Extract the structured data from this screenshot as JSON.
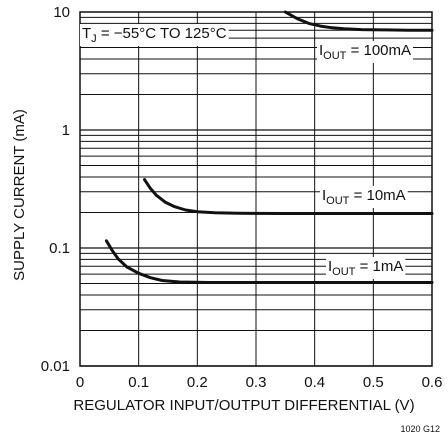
{
  "chart_data": {
    "type": "line",
    "xlabel": "REGULATOR INPUT/OUTPUT DIFFERENTIAL (V)",
    "ylabel": "SUPPLY CURRENT (mA)",
    "xlim": [
      0,
      0.6
    ],
    "ylim": [
      0.01,
      10
    ],
    "yscale": "log",
    "grid": true,
    "x_ticks": [
      {
        "value": 0,
        "label": "0"
      },
      {
        "value": 0.1,
        "label": "0.1"
      },
      {
        "value": 0.2,
        "label": "0.2"
      },
      {
        "value": 0.3,
        "label": "0.3"
      },
      {
        "value": 0.4,
        "label": "0.4"
      },
      {
        "value": 0.5,
        "label": "0.5"
      },
      {
        "value": 0.6,
        "label": "0.6"
      }
    ],
    "y_ticks": [
      {
        "value": 0.01,
        "label": "0.01"
      },
      {
        "value": 0.1,
        "label": "0.1"
      },
      {
        "value": 1,
        "label": "1"
      },
      {
        "value": 10,
        "label": "10"
      }
    ],
    "annotations": {
      "condition": {
        "main": "T",
        "sub": "J",
        "rest": " = −55°C TO 125°C"
      },
      "figure_id": "1020 G12"
    },
    "series": [
      {
        "label_main": "I",
        "label_sub": "OUT",
        "label_rest": " = 100mA",
        "x": [
          0.35,
          0.37,
          0.39,
          0.41,
          0.43,
          0.45,
          0.48,
          0.52,
          0.56,
          0.6
        ],
        "y": [
          10.0,
          8.8,
          8.0,
          7.6,
          7.35,
          7.2,
          7.1,
          7.05,
          7.0,
          7.0
        ]
      },
      {
        "label_main": "I",
        "label_sub": "OUT",
        "label_rest": " = 10mA",
        "x": [
          0.11,
          0.12,
          0.13,
          0.145,
          0.16,
          0.18,
          0.2,
          0.23,
          0.27,
          0.35,
          0.45,
          0.6
        ],
        "y": [
          0.38,
          0.32,
          0.28,
          0.245,
          0.225,
          0.21,
          0.203,
          0.199,
          0.197,
          0.196,
          0.196,
          0.196
        ]
      },
      {
        "label_main": "I",
        "label_sub": "OUT",
        "label_rest": " = 1mA",
        "x": [
          0.045,
          0.055,
          0.065,
          0.08,
          0.1,
          0.12,
          0.14,
          0.17,
          0.22,
          0.3,
          0.45,
          0.6
        ],
        "y": [
          0.115,
          0.095,
          0.081,
          0.069,
          0.061,
          0.056,
          0.053,
          0.0515,
          0.051,
          0.051,
          0.051,
          0.051
        ]
      }
    ]
  }
}
